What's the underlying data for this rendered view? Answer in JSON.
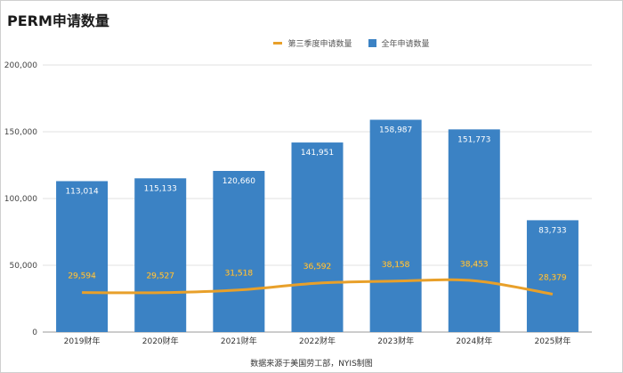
{
  "chart_data": {
    "type": "bar",
    "title": "PERM申请数量",
    "categories": [
      "2019财年",
      "2020财年",
      "2021财年",
      "2022财年",
      "2023财年",
      "2024财年",
      "2025财年"
    ],
    "series": [
      {
        "name": "全年申请数量",
        "type": "bar",
        "color": "#3b82c4",
        "values": [
          113014,
          115133,
          120660,
          141951,
          158987,
          151773,
          83733
        ]
      },
      {
        "name": "第三季度申请数量",
        "type": "line",
        "color": "#e8a02a",
        "values": [
          29594,
          29527,
          31518,
          36592,
          38158,
          38453,
          28379
        ]
      }
    ],
    "ylim": [
      0,
      200000
    ],
    "yticks": [
      0,
      50000,
      100000,
      150000,
      200000
    ],
    "grid": true,
    "legend_position": "top",
    "source": "数据来源于美国劳工部，NYIS制图"
  }
}
